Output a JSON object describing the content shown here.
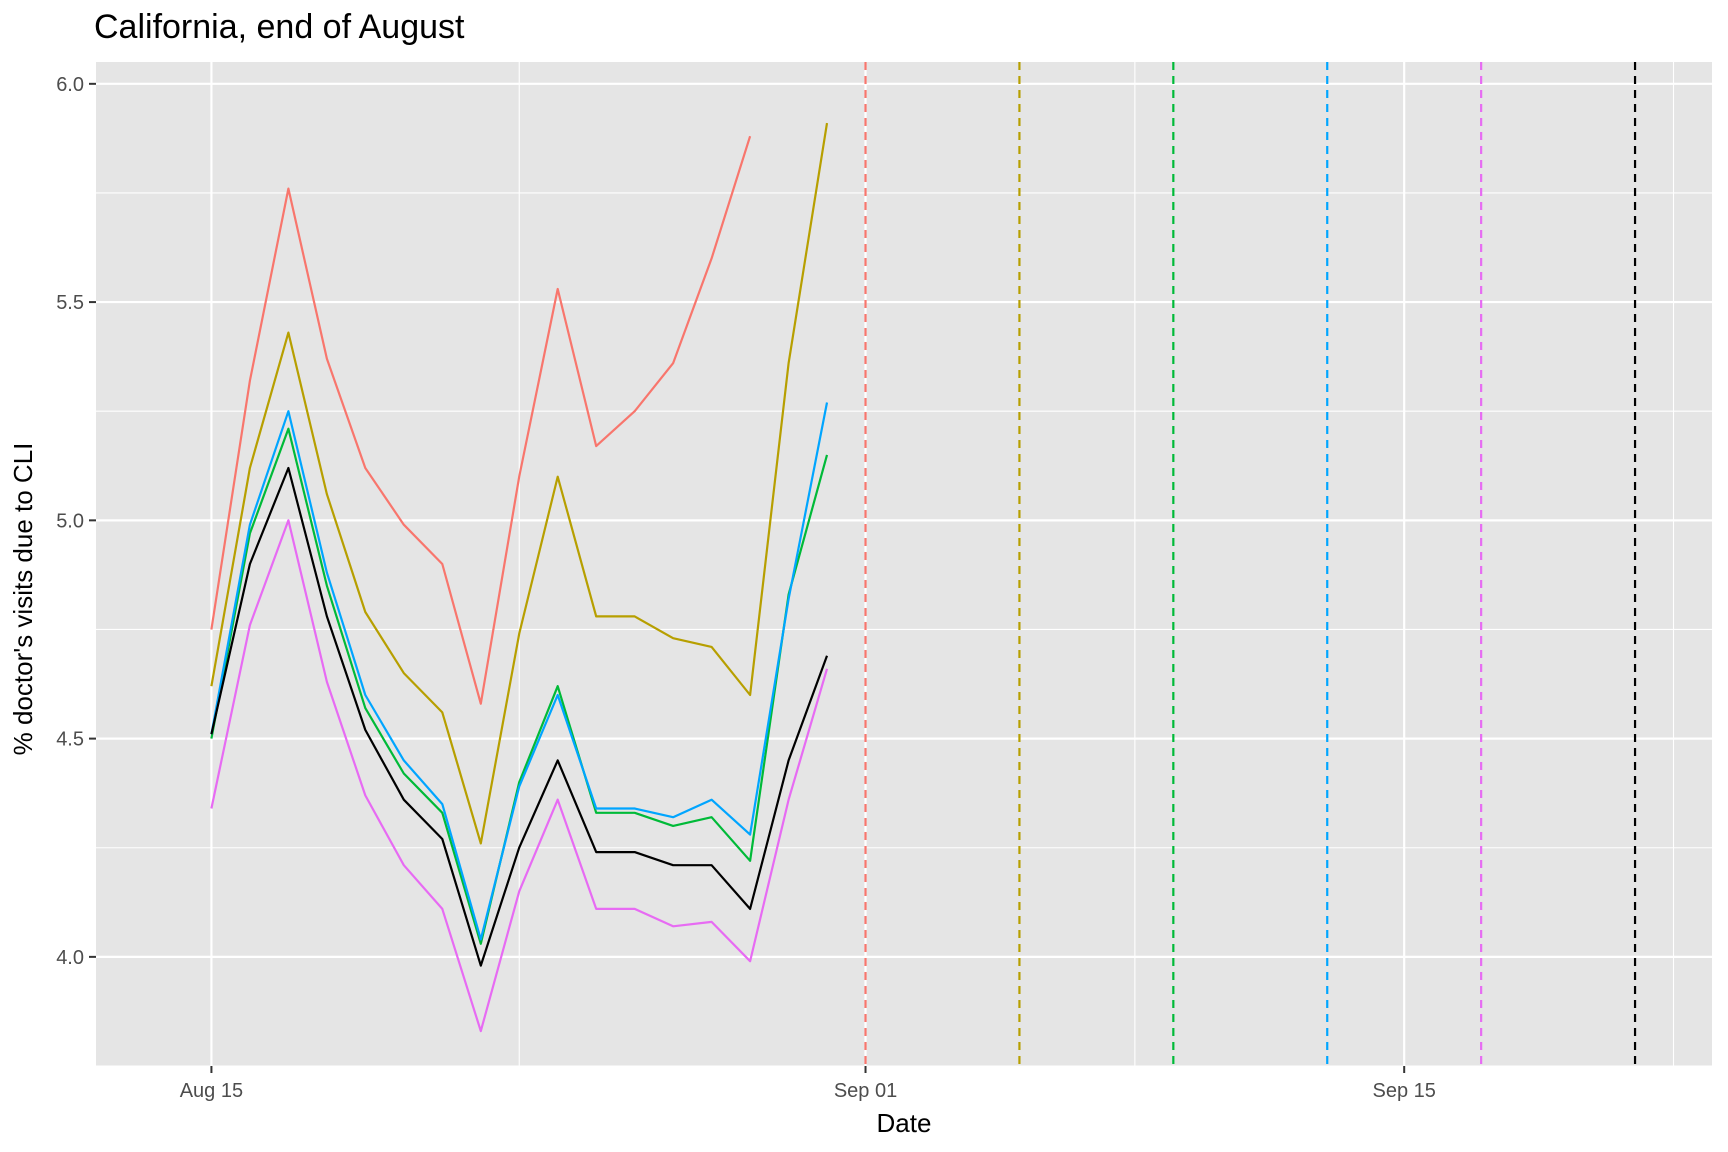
{
  "chart_data": {
    "type": "line",
    "title": "California, end of August",
    "xlabel": "Date",
    "ylabel": "% doctor's visits due to CLI",
    "x_axis": {
      "type": "date",
      "range": [
        "2020-08-12",
        "2020-09-23"
      ],
      "ticks": [
        {
          "date": "2020-08-15",
          "label": "Aug 15"
        },
        {
          "date": "2020-09-01",
          "label": "Sep 01"
        },
        {
          "date": "2020-09-15",
          "label": "Sep 15"
        }
      ],
      "minor_ticks": [
        "2020-08-23",
        "2020-09-08",
        "2020-09-22"
      ]
    },
    "y_axis": {
      "range": [
        3.75,
        6.05
      ],
      "ticks": [
        {
          "value": 4.0,
          "label": "4.0"
        },
        {
          "value": 4.5,
          "label": "4.5"
        },
        {
          "value": 5.0,
          "label": "5.0"
        },
        {
          "value": 5.5,
          "label": "5.5"
        },
        {
          "value": 6.0,
          "label": "6.0"
        }
      ],
      "minor_ticks": [
        3.75,
        4.25,
        4.75,
        5.25,
        5.75
      ]
    },
    "grid": true,
    "legend": "none",
    "background": "#E5E5E5",
    "gridline_color": "#FFFFFF",
    "series": [
      {
        "color": "#F8766D",
        "x": [
          "2020-08-15",
          "2020-08-16",
          "2020-08-17",
          "2020-08-18",
          "2020-08-19",
          "2020-08-20",
          "2020-08-21",
          "2020-08-22",
          "2020-08-23",
          "2020-08-24",
          "2020-08-25",
          "2020-08-26",
          "2020-08-27",
          "2020-08-28",
          "2020-08-29"
        ],
        "values": [
          4.75,
          5.32,
          5.76,
          5.37,
          5.12,
          4.99,
          4.9,
          4.58,
          5.1,
          5.53,
          5.17,
          5.25,
          5.36,
          5.6,
          5.88
        ]
      },
      {
        "color": "#B79F00",
        "x": [
          "2020-08-15",
          "2020-08-16",
          "2020-08-17",
          "2020-08-18",
          "2020-08-19",
          "2020-08-20",
          "2020-08-21",
          "2020-08-22",
          "2020-08-23",
          "2020-08-24",
          "2020-08-25",
          "2020-08-26",
          "2020-08-27",
          "2020-08-28",
          "2020-08-29",
          "2020-08-30",
          "2020-08-31"
        ],
        "values": [
          4.62,
          5.12,
          5.43,
          5.06,
          4.79,
          4.65,
          4.56,
          4.26,
          4.74,
          5.1,
          4.78,
          4.78,
          4.73,
          4.71,
          4.6,
          5.36,
          5.91
        ]
      },
      {
        "color": "#00BA38",
        "x": [
          "2020-08-15",
          "2020-08-16",
          "2020-08-17",
          "2020-08-18",
          "2020-08-19",
          "2020-08-20",
          "2020-08-21",
          "2020-08-22",
          "2020-08-23",
          "2020-08-24",
          "2020-08-25",
          "2020-08-26",
          "2020-08-27",
          "2020-08-28",
          "2020-08-29",
          "2020-08-30",
          "2020-08-31"
        ],
        "values": [
          4.5,
          4.97,
          5.21,
          4.85,
          4.57,
          4.42,
          4.33,
          4.03,
          4.4,
          4.62,
          4.33,
          4.33,
          4.3,
          4.32,
          4.22,
          4.83,
          5.15
        ]
      },
      {
        "color": "#00A5FF",
        "x": [
          "2020-08-15",
          "2020-08-16",
          "2020-08-17",
          "2020-08-18",
          "2020-08-19",
          "2020-08-20",
          "2020-08-21",
          "2020-08-22",
          "2020-08-23",
          "2020-08-24",
          "2020-08-25",
          "2020-08-26",
          "2020-08-27",
          "2020-08-28",
          "2020-08-29",
          "2020-08-30",
          "2020-08-31"
        ],
        "values": [
          4.51,
          4.99,
          5.25,
          4.88,
          4.6,
          4.45,
          4.35,
          4.04,
          4.39,
          4.6,
          4.34,
          4.34,
          4.32,
          4.36,
          4.28,
          4.82,
          5.27
        ]
      },
      {
        "color": "#E76BF3",
        "x": [
          "2020-08-15",
          "2020-08-16",
          "2020-08-17",
          "2020-08-18",
          "2020-08-19",
          "2020-08-20",
          "2020-08-21",
          "2020-08-22",
          "2020-08-23",
          "2020-08-24",
          "2020-08-25",
          "2020-08-26",
          "2020-08-27",
          "2020-08-28",
          "2020-08-29",
          "2020-08-30",
          "2020-08-31"
        ],
        "values": [
          4.34,
          4.76,
          5.0,
          4.63,
          4.37,
          4.21,
          4.11,
          3.83,
          4.15,
          4.36,
          4.11,
          4.11,
          4.07,
          4.08,
          3.99,
          4.36,
          4.66
        ]
      },
      {
        "color": "#000000",
        "x": [
          "2020-08-15",
          "2020-08-16",
          "2020-08-17",
          "2020-08-18",
          "2020-08-19",
          "2020-08-20",
          "2020-08-21",
          "2020-08-22",
          "2020-08-23",
          "2020-08-24",
          "2020-08-25",
          "2020-08-26",
          "2020-08-27",
          "2020-08-28",
          "2020-08-29",
          "2020-08-30",
          "2020-08-31"
        ],
        "values": [
          4.51,
          4.9,
          5.12,
          4.78,
          4.52,
          4.36,
          4.27,
          3.98,
          4.25,
          4.45,
          4.24,
          4.24,
          4.21,
          4.21,
          4.11,
          4.45,
          4.69
        ]
      }
    ],
    "vlines": [
      {
        "date": "2020-09-01",
        "color": "#F8766D",
        "style": "dashed"
      },
      {
        "date": "2020-09-05",
        "color": "#B79F00",
        "style": "dashed"
      },
      {
        "date": "2020-09-09",
        "color": "#00BA38",
        "style": "dashed"
      },
      {
        "date": "2020-09-13",
        "color": "#00A5FF",
        "style": "dashed"
      },
      {
        "date": "2020-09-17",
        "color": "#E76BF3",
        "style": "dashed"
      },
      {
        "date": "2020-09-21",
        "color": "#000000",
        "style": "dashed"
      }
    ]
  }
}
